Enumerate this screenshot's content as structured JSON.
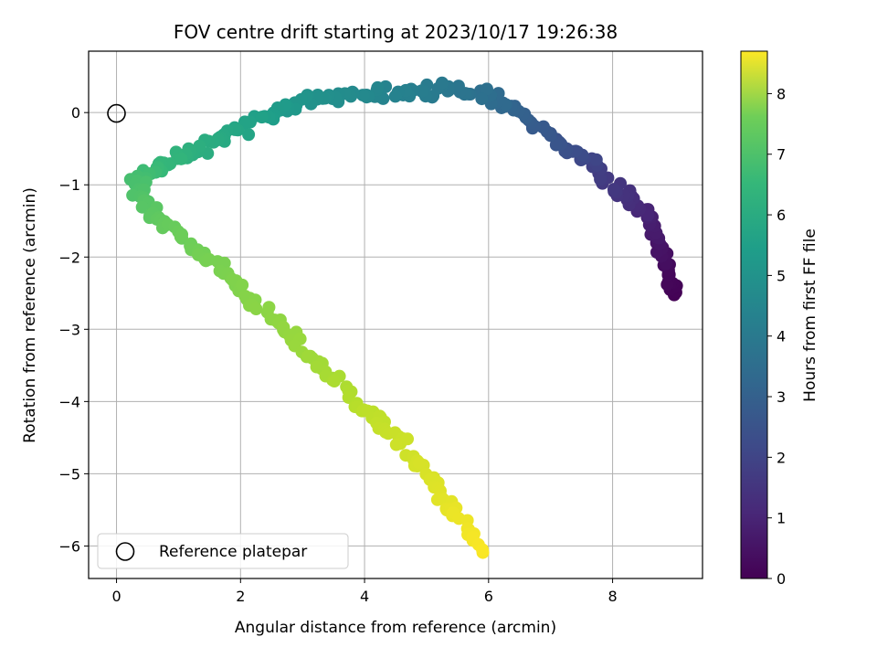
{
  "chart_data": {
    "type": "scatter",
    "title": "FOV centre drift starting at 2023/10/17 19:26:38",
    "xlabel": "Angular distance from reference (arcmin)",
    "ylabel": "Rotation from reference (arcmin)",
    "xlim": [
      -0.45,
      9.45
    ],
    "ylim": [
      -6.45,
      0.85
    ],
    "xticks": [
      0,
      2,
      4,
      6,
      8
    ],
    "yticks": [
      0,
      -1,
      -2,
      -3,
      -4,
      -5,
      -6
    ],
    "grid": true,
    "legend": {
      "placement": "lower-left",
      "entries": [
        "Reference platepar"
      ]
    },
    "reference_point": {
      "x": 0,
      "y": 0,
      "label": "Reference platepar"
    },
    "colorbar": {
      "label": "Hours from first FF file",
      "min": 0,
      "max": 8.7,
      "ticks": [
        0,
        1,
        2,
        3,
        4,
        5,
        6,
        7,
        8
      ],
      "colormap": "viridis"
    },
    "path_anchors": [
      {
        "x": 9.0,
        "y": -2.55,
        "t": 0.0
      },
      {
        "x": 8.9,
        "y": -2.2,
        "t": 0.2
      },
      {
        "x": 8.75,
        "y": -1.8,
        "t": 0.5
      },
      {
        "x": 8.5,
        "y": -1.35,
        "t": 0.9
      },
      {
        "x": 8.1,
        "y": -1.1,
        "t": 1.3
      },
      {
        "x": 7.7,
        "y": -0.7,
        "t": 1.7
      },
      {
        "x": 7.2,
        "y": -0.45,
        "t": 2.2
      },
      {
        "x": 6.6,
        "y": -0.1,
        "t": 2.6
      },
      {
        "x": 6.0,
        "y": 0.25,
        "t": 3.1
      },
      {
        "x": 5.3,
        "y": 0.35,
        "t": 3.5
      },
      {
        "x": 4.6,
        "y": 0.3,
        "t": 3.8
      },
      {
        "x": 3.9,
        "y": 0.25,
        "t": 4.1
      },
      {
        "x": 3.2,
        "y": 0.2,
        "t": 4.4
      },
      {
        "x": 2.5,
        "y": 0.0,
        "t": 4.8
      },
      {
        "x": 1.8,
        "y": -0.3,
        "t": 5.2
      },
      {
        "x": 1.2,
        "y": -0.55,
        "t": 5.5
      },
      {
        "x": 0.7,
        "y": -0.75,
        "t": 5.8
      },
      {
        "x": 0.3,
        "y": -0.95,
        "t": 6.1
      },
      {
        "x": 0.5,
        "y": -1.3,
        "t": 6.4
      },
      {
        "x": 1.0,
        "y": -1.7,
        "t": 6.7
      },
      {
        "x": 1.6,
        "y": -2.1,
        "t": 6.9
      },
      {
        "x": 2.2,
        "y": -2.6,
        "t": 7.1
      },
      {
        "x": 2.8,
        "y": -3.1,
        "t": 7.3
      },
      {
        "x": 3.4,
        "y": -3.6,
        "t": 7.5
      },
      {
        "x": 4.0,
        "y": -4.1,
        "t": 7.8
      },
      {
        "x": 4.5,
        "y": -4.5,
        "t": 8.0
      },
      {
        "x": 5.0,
        "y": -5.0,
        "t": 8.2
      },
      {
        "x": 5.4,
        "y": -5.5,
        "t": 8.4
      },
      {
        "x": 5.9,
        "y": -6.05,
        "t": 8.65
      }
    ],
    "points_per_segment": 14,
    "scatter_spread": 0.12
  }
}
